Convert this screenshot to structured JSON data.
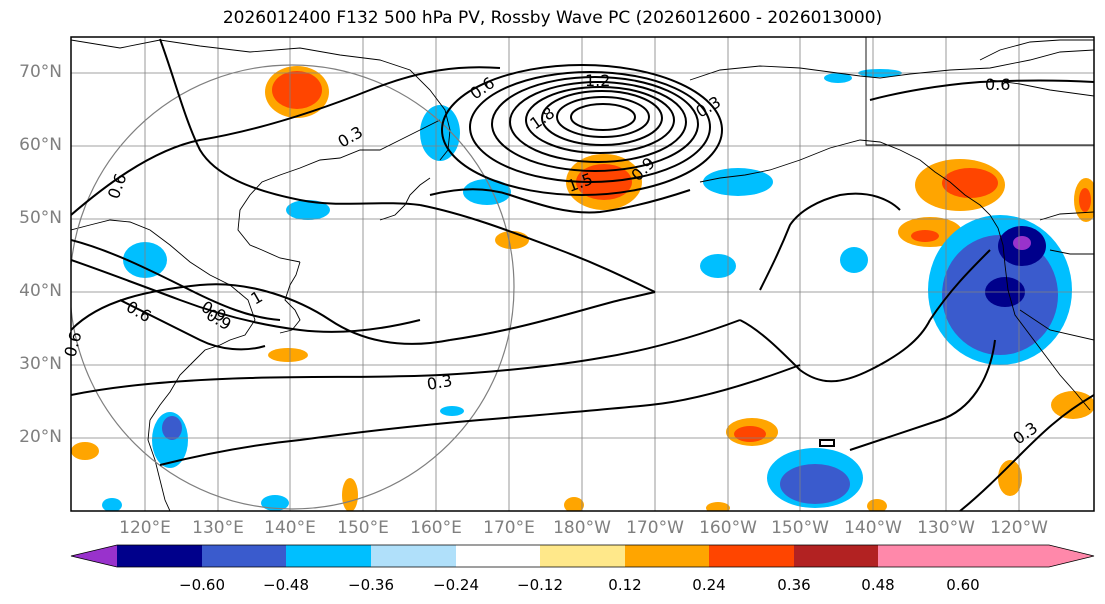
{
  "title": "2026012400 F132 500 hPa PV, Rossby Wave PC (2026012600 - 2026013000)",
  "map": {
    "lat_labels": [
      "70°N",
      "60°N",
      "50°N",
      "40°N",
      "30°N",
      "20°N"
    ],
    "lon_labels": [
      "120°E",
      "130°E",
      "140°E",
      "150°E",
      "160°E",
      "170°E",
      "180°W",
      "170°W",
      "160°W",
      "150°W",
      "140°W",
      "130°W",
      "120°W"
    ],
    "contour_labels": [
      "0.6",
      "0.3",
      "1.2",
      "1.8",
      "0.9",
      "1.5",
      "0.6",
      "0.3",
      "0.6",
      "0.9",
      "0.6",
      "0.3",
      "0.3",
      "0.6",
      "0.9",
      "1"
    ],
    "colors": {
      "land_line": "#000000",
      "grid": "#808080",
      "contour": "#000000"
    }
  },
  "colorbar": {
    "colors": [
      "#9932cc",
      "#00008b",
      "#3a5bcd",
      "#00bfff",
      "#b0e0fa",
      "#ffffff",
      "#ffe88a",
      "#ffa500",
      "#ff4500",
      "#b22222",
      "#ff88aa"
    ],
    "labels": [
      "−0.60",
      "−0.48",
      "−0.36",
      "−0.24",
      "−0.12",
      "0.12",
      "0.24",
      "0.36",
      "0.48",
      "0.60"
    ]
  }
}
